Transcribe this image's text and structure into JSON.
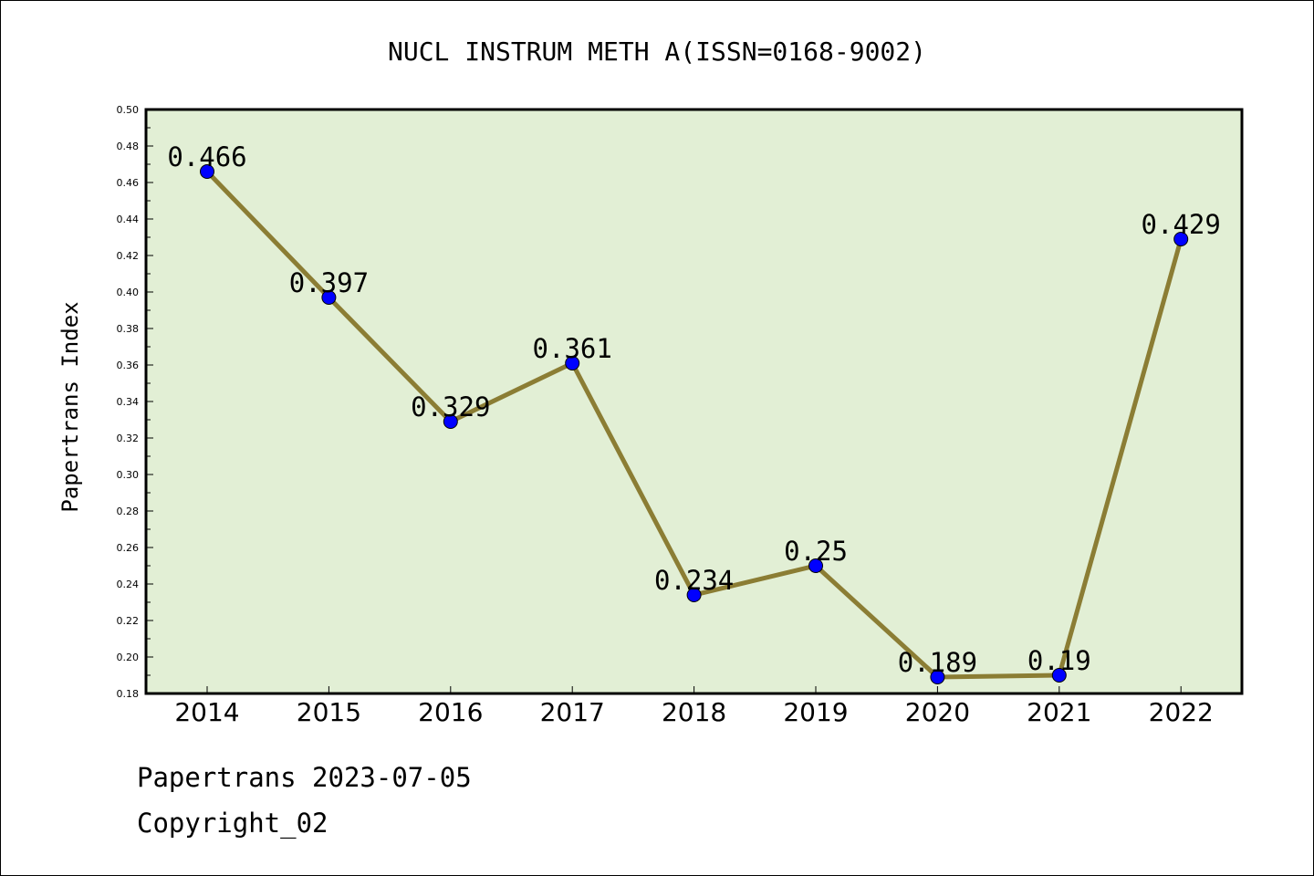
{
  "chart_data": {
    "type": "line",
    "title": "NUCL INSTRUM METH A(ISSN=0168-9002)",
    "xlabel": "",
    "ylabel": "Papertrans Index",
    "categories": [
      "2014",
      "2015",
      "2016",
      "2017",
      "2018",
      "2019",
      "2020",
      "2021",
      "2022"
    ],
    "values": [
      0.466,
      0.397,
      0.329,
      0.361,
      0.234,
      0.25,
      0.189,
      0.19,
      0.429
    ],
    "data_labels": [
      "0.466",
      "0.397",
      "0.329",
      "0.361",
      "0.234",
      "0.25",
      "0.189",
      "0.19",
      "0.429"
    ],
    "ylim": [
      0.18,
      0.5
    ],
    "yticks": [
      "0.18",
      "0.20",
      "0.22",
      "0.24",
      "0.26",
      "0.28",
      "0.30",
      "0.32",
      "0.34",
      "0.36",
      "0.38",
      "0.40",
      "0.42",
      "0.44",
      "0.46",
      "0.48",
      "0.50"
    ],
    "grid": false,
    "colors": {
      "plot_background": "#e2efd5",
      "line": "#8b7d34",
      "marker": "#0000ff"
    }
  },
  "footer": {
    "line1": "Papertrans 2023-07-05",
    "line2": "Copyright_02"
  }
}
